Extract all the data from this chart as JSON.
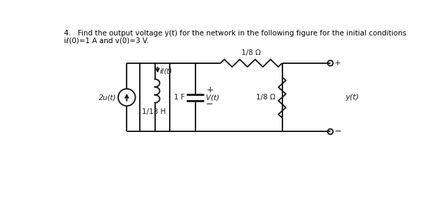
{
  "title_line1": "4.   Find the output voltage y(t) for the network in the following figure for the initial conditions",
  "title_line2": "iℓ(0)=1 A and v⁣(0)=3 V.",
  "bg_color": "#ffffff",
  "cc": "#1a1a1a",
  "resistor_top_label": "1/8 Ω",
  "resistor_right_label": "1/8 Ω",
  "inductor_label": "1/13 H",
  "capacitor_label": "1 F",
  "vc_label": "V⁣(t)",
  "il_label": "iℓ(t)",
  "source_label": "2u(t)",
  "output_label": "y(t)"
}
